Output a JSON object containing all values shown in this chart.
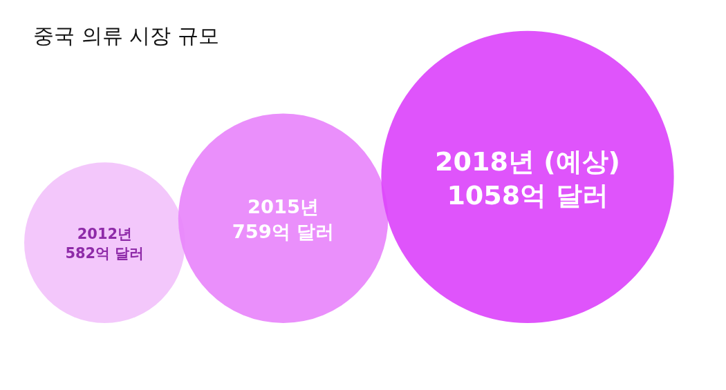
{
  "chart_data": {
    "type": "other",
    "title": "중국 의류 시장 규모",
    "categories": [
      "2012년",
      "2015년",
      "2018년 (예상)"
    ],
    "values": [
      582,
      759,
      1058
    ],
    "value_labels": [
      "582억 달러",
      "759억 달러",
      "1058억 달러"
    ],
    "colors": [
      "#f2c2fb",
      "#e886fb",
      "#dc45fb"
    ]
  }
}
